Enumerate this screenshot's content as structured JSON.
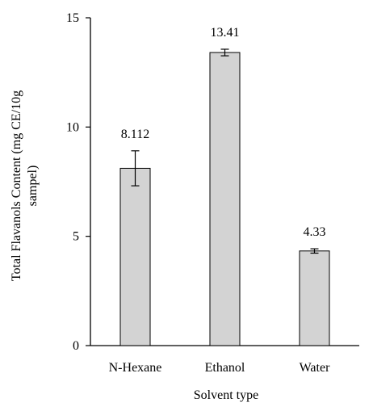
{
  "chart_data": {
    "type": "bar",
    "categories": [
      "N-Hexane",
      "Ethanol",
      "Water"
    ],
    "values": [
      8.112,
      13.41,
      4.33
    ],
    "error": [
      0.8,
      0.15,
      0.1
    ],
    "data_labels": [
      "8.112",
      "13.41",
      "4.33"
    ],
    "xlabel": "Solvent type",
    "ylabel_lines": [
      "Total Flavanols Content (mg CE/10g",
      "sampel)"
    ],
    "ylim": [
      0,
      15
    ],
    "yticks": [
      0,
      5,
      10,
      15
    ],
    "grid": false,
    "legend": "none",
    "colors": {
      "bar_fill": "#d3d3d3",
      "bar_stroke": "#000000",
      "axis": "#000000"
    }
  }
}
